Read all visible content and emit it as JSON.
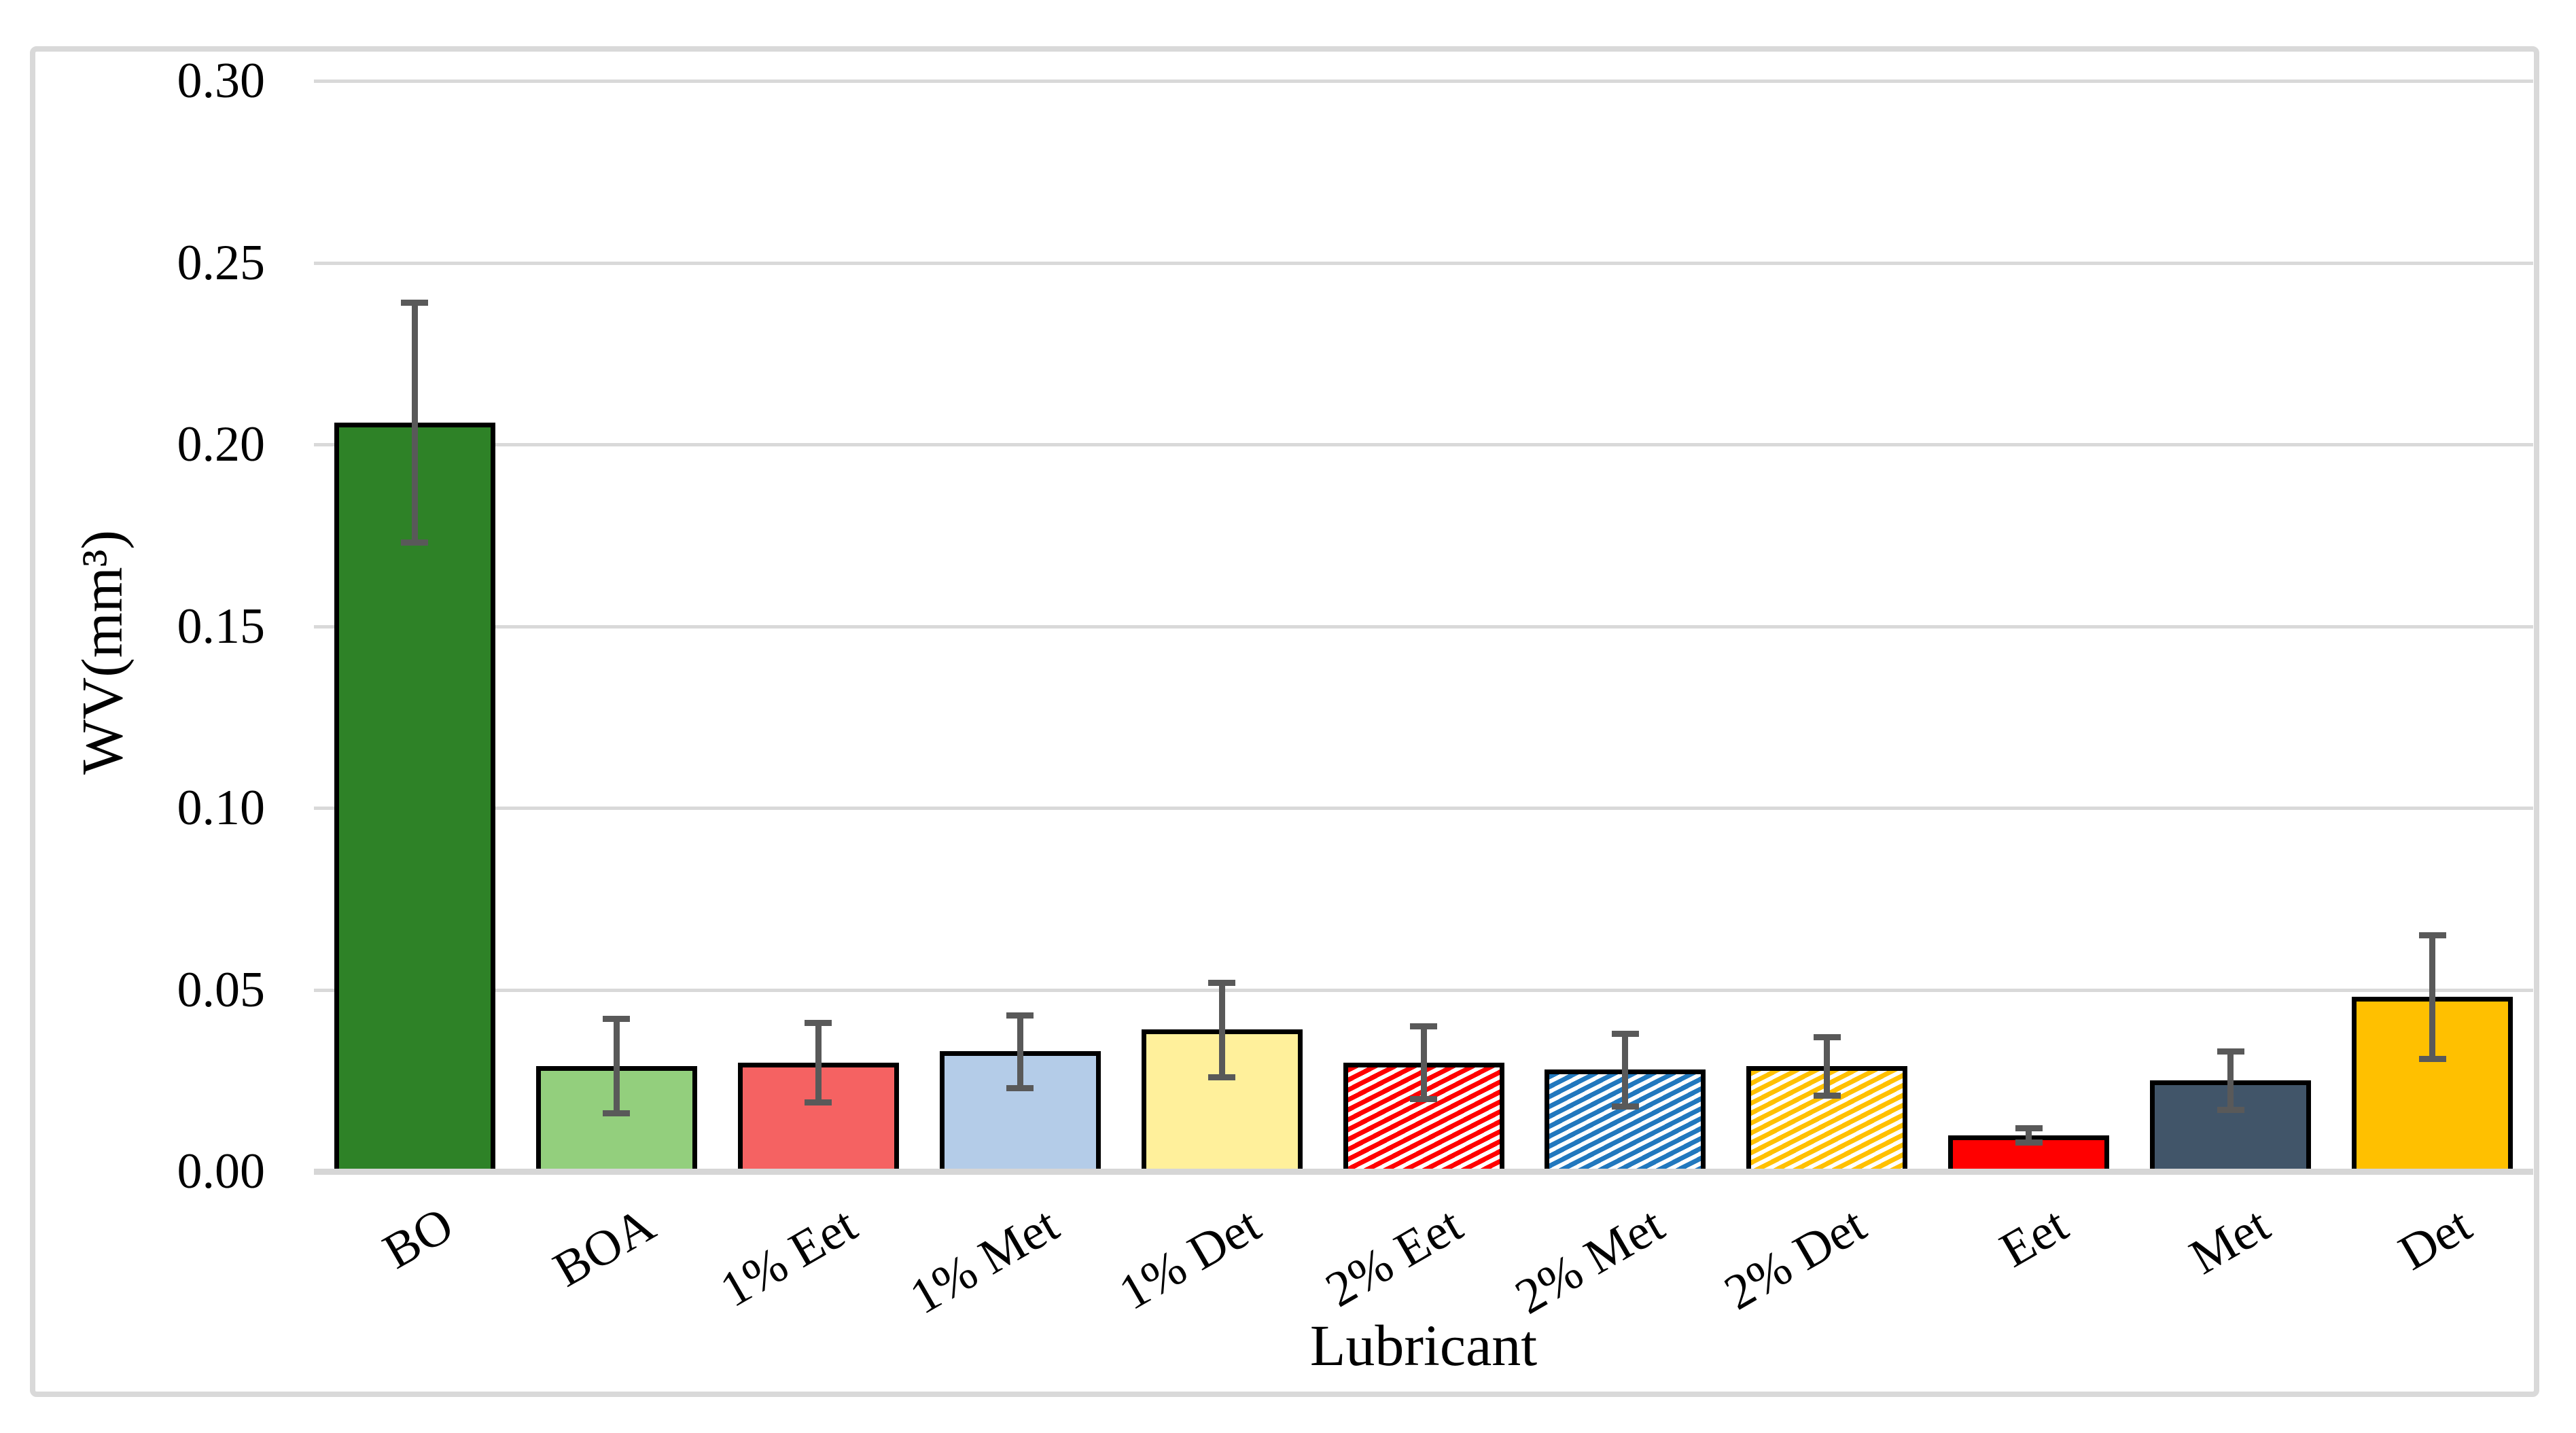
{
  "figure": {
    "xlabel": "Lubricant",
    "ylabel": "WV(mm³)",
    "colors": {
      "background": "#FFFFFF",
      "figure_border": "#D9D9D9",
      "gridline": "#D9D9D9",
      "axis_line": "#D6D6D6",
      "bar_outline": "#000000",
      "error_bar": "#595959"
    }
  },
  "chart_data": {
    "type": "bar",
    "title": "",
    "xlabel": "Lubricant",
    "ylabel": "WV(mm³)",
    "ylim": [
      0,
      0.3
    ],
    "ytick_step": 0.05,
    "yticks": [
      "0.00",
      "0.05",
      "0.10",
      "0.15",
      "0.20",
      "0.25",
      "0.30"
    ],
    "grid": true,
    "legend": "none",
    "x_label_rotation_deg": -30,
    "categories": [
      "BO",
      "BOA",
      "1% Eet",
      "1% Met",
      "1% Det",
      "2% Eet",
      "2% Met",
      "2% Det",
      "Eet",
      "Met",
      "Det"
    ],
    "values": [
      0.206,
      0.029,
      0.03,
      0.033,
      0.039,
      0.03,
      0.028,
      0.029,
      0.01,
      0.025,
      0.048
    ],
    "error": [
      0.033,
      0.013,
      0.011,
      0.01,
      0.013,
      0.01,
      0.01,
      0.008,
      0.002,
      0.008,
      0.017
    ],
    "bar_styles": [
      {
        "fill": "#2E8227",
        "hatch": false
      },
      {
        "fill": "#93CF7D",
        "hatch": false
      },
      {
        "fill": "#F56262",
        "hatch": false
      },
      {
        "fill": "#B4CCE8",
        "hatch": false
      },
      {
        "fill": "#FFF09B",
        "hatch": false
      },
      {
        "fill": "#FF0000",
        "hatch": true
      },
      {
        "fill": "#2178BE",
        "hatch": true
      },
      {
        "fill": "#FFC000",
        "hatch": true
      },
      {
        "fill": "#FF0000",
        "hatch": false
      },
      {
        "fill": "#415569",
        "hatch": false
      },
      {
        "fill": "#FFC000",
        "hatch": false
      }
    ]
  }
}
